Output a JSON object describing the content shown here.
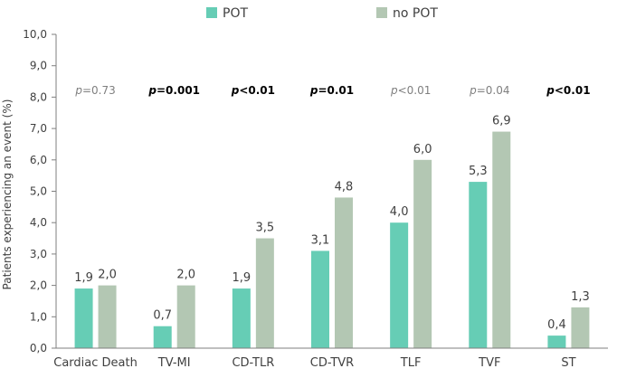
{
  "chart_data": {
    "type": "bar",
    "categories": [
      "Cardiac Death",
      "TV-MI",
      "CD-TLR",
      "CD-TVR",
      "TLF",
      "TVF",
      "ST"
    ],
    "series": [
      {
        "name": "POT",
        "color": "#66cdb5",
        "values": [
          1.9,
          0.7,
          1.9,
          3.1,
          4.0,
          5.3,
          0.4
        ],
        "labels": [
          "1,9",
          "0,7",
          "1,9",
          "3,1",
          "4,0",
          "5,3",
          "0,4"
        ]
      },
      {
        "name": "no POT",
        "color": "#b3c7b3",
        "values": [
          2.0,
          2.0,
          3.5,
          4.8,
          6.0,
          6.9,
          1.3
        ],
        "labels": [
          "2,0",
          "2,0",
          "3,5",
          "4,8",
          "6,0",
          "6,9",
          "1,3"
        ]
      }
    ],
    "ylabel": "Patients experiencing an event (%)",
    "ylim": [
      0,
      10
    ],
    "yticks": [
      "0,0",
      "1,0",
      "2,0",
      "3,0",
      "4,0",
      "5,0",
      "6,0",
      "7,0",
      "8,0",
      "9,0",
      "10,0"
    ],
    "legend_position": "top-center",
    "grid": false,
    "annotations": [
      {
        "category": "Cardiac Death",
        "prefix": "p",
        "text": "=0.73",
        "bold": false
      },
      {
        "category": "TV-MI",
        "prefix": "p",
        "text": "=0.001",
        "bold": true
      },
      {
        "category": "CD-TLR",
        "prefix": "p",
        "text": "<0.01",
        "bold": true
      },
      {
        "category": "CD-TVR",
        "prefix": "p",
        "text": "=0.01",
        "bold": true
      },
      {
        "category": "TLF",
        "prefix": "p",
        "text": "<0.01",
        "bold": false
      },
      {
        "category": "TVF",
        "prefix": "p",
        "text": "=0.04",
        "bold": false
      },
      {
        "category": "ST",
        "prefix": "p",
        "text": "<0.01",
        "bold": true
      }
    ]
  }
}
